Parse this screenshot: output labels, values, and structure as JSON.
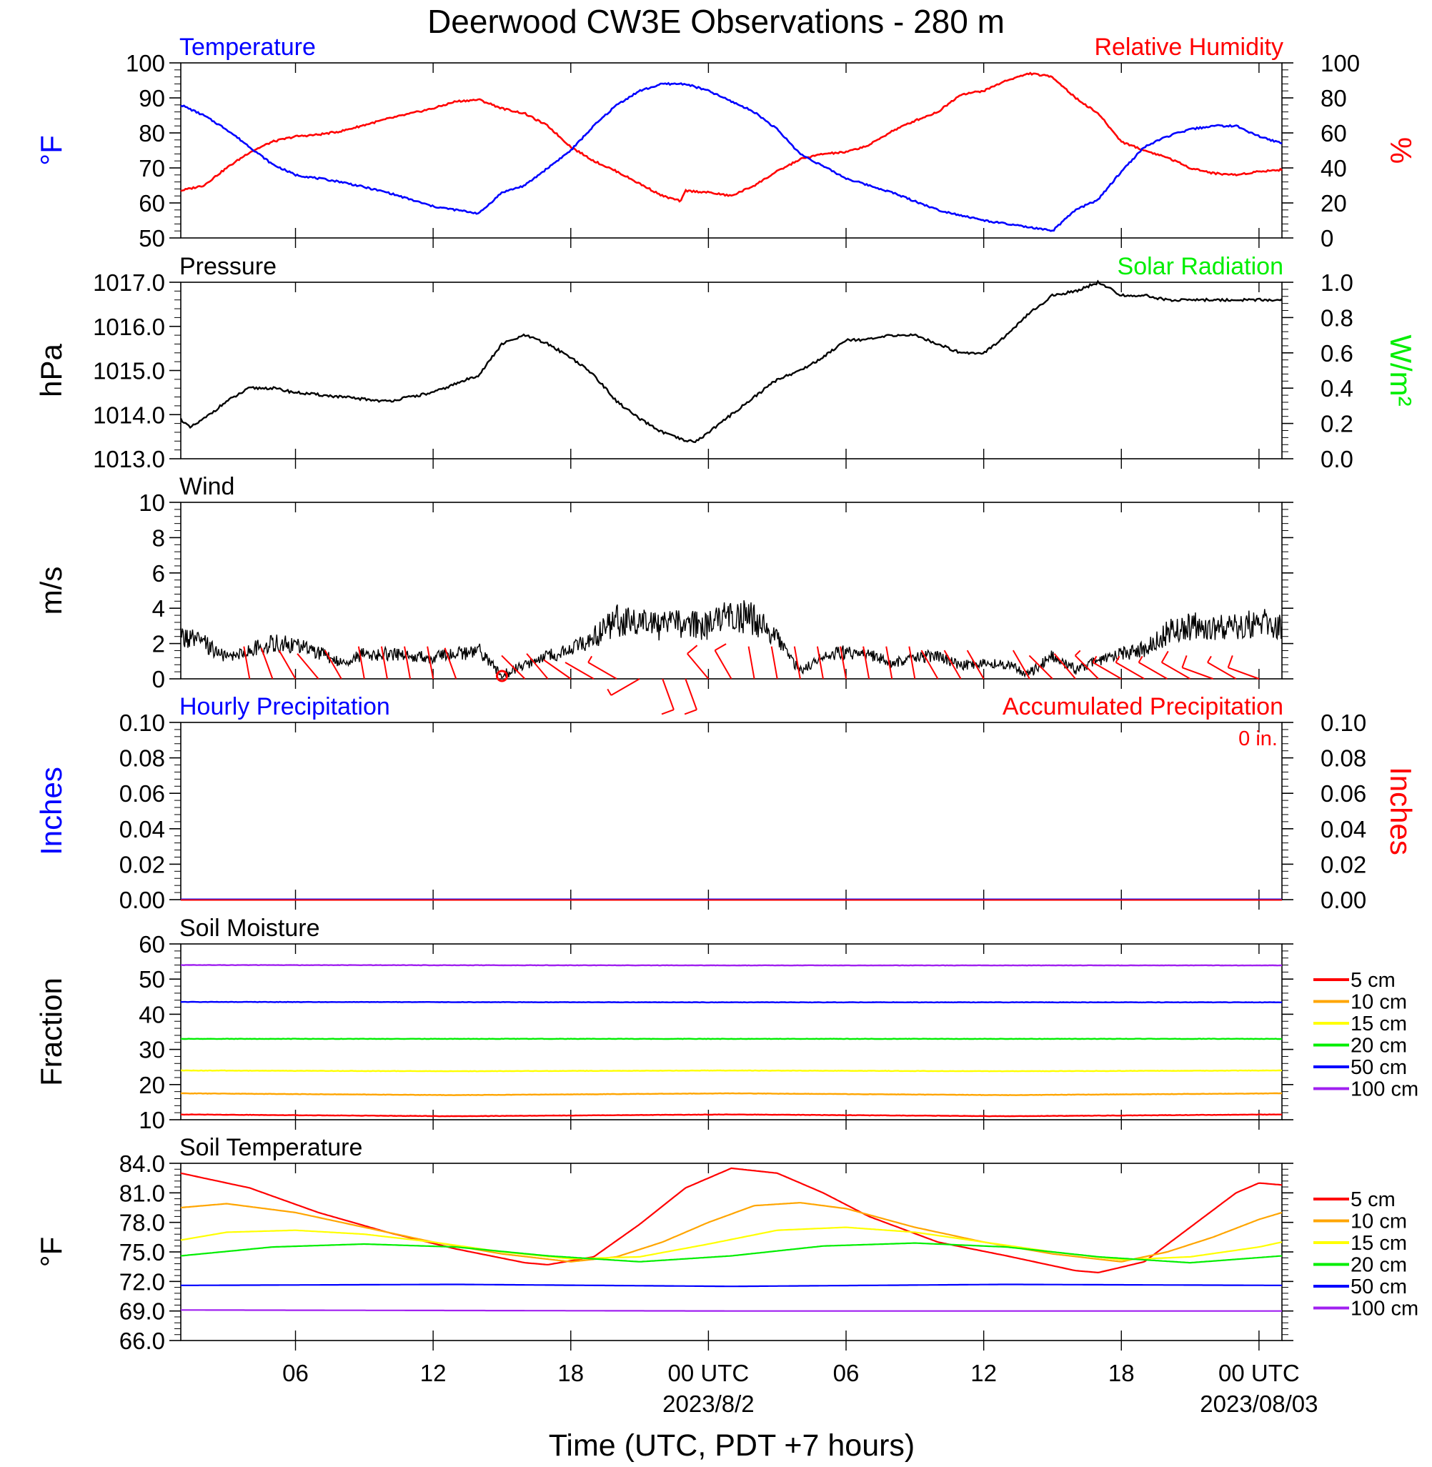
{
  "title": "Deerwood CW3E Observations - 280 m",
  "x_axis": {
    "label": "Time (UTC, PDT +7 hours)",
    "ticks": [
      {
        "hour": 6,
        "label": "06"
      },
      {
        "hour": 12,
        "label": "12"
      },
      {
        "hour": 18,
        "label": "18"
      },
      {
        "hour": 24,
        "label": "00 UTC"
      },
      {
        "hour": 30,
        "label": "06"
      },
      {
        "hour": 36,
        "label": "12"
      },
      {
        "hour": 42,
        "label": "18"
      },
      {
        "hour": 48,
        "label": "00 UTC"
      }
    ],
    "date_labels": [
      {
        "hour": 24,
        "label": "2023/8/2"
      },
      {
        "hour": 48,
        "label": "2023/08/03"
      }
    ],
    "range_hours": [
      1,
      49
    ]
  },
  "colors": {
    "temperature": "#0000ff",
    "humidity": "#ff0000",
    "pressure": "#000000",
    "solar": "#00ee00",
    "wind": "#000000",
    "barbs": "#ff0000",
    "hourly_precip": "#0000ff",
    "accum_precip": "#ff0000",
    "soil": [
      "#ff0000",
      "#ffa500",
      "#ffff00",
      "#00ee00",
      "#0000ff",
      "#a020f0"
    ]
  },
  "panels": {
    "temp_rh": {
      "left_title": "Temperature",
      "right_title": "Relative Humidity",
      "left_unit": "°F",
      "right_unit": "%",
      "left_ticks": [
        "100",
        "90",
        "80",
        "70",
        "60",
        "50"
      ],
      "right_ticks": [
        "100",
        "80",
        "60",
        "40",
        "20",
        "0"
      ]
    },
    "pressure": {
      "left_title": "Pressure",
      "right_title": "Solar Radiation",
      "left_unit": "hPa",
      "right_unit": "W/m²",
      "left_ticks": [
        "1017.0",
        "1016.0",
        "1015.0",
        "1014.0",
        "1013.0"
      ],
      "right_ticks": [
        "1.0",
        "0.8",
        "0.6",
        "0.4",
        "0.2",
        "0.0"
      ]
    },
    "wind": {
      "left_title": "Wind",
      "left_unit": "m/s",
      "left_ticks": [
        "10",
        "8",
        "6",
        "4",
        "2",
        "0"
      ]
    },
    "precip": {
      "left_title": "Hourly Precipitation",
      "right_title": "Accumulated Precipitation",
      "accum_note": "0 in.",
      "left_unit": "Inches",
      "right_unit": "Inches",
      "left_ticks": [
        "0.10",
        "0.08",
        "0.06",
        "0.04",
        "0.02",
        "0.00"
      ],
      "right_ticks": [
        "0.10",
        "0.08",
        "0.06",
        "0.04",
        "0.02",
        "0.00"
      ]
    },
    "soil_moisture": {
      "left_title": "Soil Moisture",
      "left_unit": "Fraction",
      "left_ticks": [
        "60",
        "50",
        "40",
        "30",
        "20",
        "10"
      ]
    },
    "soil_temp": {
      "left_title": "Soil Temperature",
      "left_unit": "°F",
      "left_ticks": [
        "84.0",
        "81.0",
        "78.0",
        "75.0",
        "72.0",
        "69.0",
        "66.0"
      ]
    }
  },
  "legend": {
    "items": [
      "5 cm",
      "10 cm",
      "15 cm",
      "20 cm",
      "50 cm",
      "100 cm"
    ]
  },
  "chart_data": [
    {
      "type": "line",
      "panel": "Temperature / Relative Humidity",
      "x_unit": "hours UTC from 2023-08-01 00Z",
      "series": [
        {
          "name": "Temperature",
          "axis": "left",
          "ylim": [
            50,
            100
          ],
          "x": [
            1,
            2,
            3,
            4,
            5,
            6,
            8,
            10,
            12,
            14,
            15,
            16,
            17,
            18,
            19,
            20,
            21,
            22,
            23,
            24,
            25,
            26,
            27,
            28,
            30,
            32,
            34,
            36,
            38,
            39,
            40,
            41,
            42,
            43,
            44,
            45,
            46,
            47,
            48,
            49
          ],
          "y": [
            88,
            85,
            81,
            76,
            71,
            68,
            66,
            63,
            59,
            57,
            63,
            65,
            70,
            75,
            82,
            88,
            92,
            94,
            94,
            92,
            89,
            86,
            81,
            74,
            67,
            63,
            58,
            55,
            53,
            52,
            58,
            61,
            69,
            76,
            79,
            81,
            82,
            82,
            79,
            77
          ]
        },
        {
          "name": "Relative Humidity",
          "axis": "right",
          "ylim": [
            0,
            100
          ],
          "x": [
            1,
            2,
            3,
            4,
            5,
            6,
            7,
            8,
            10,
            12,
            13,
            14,
            15,
            16,
            17,
            18,
            19,
            20,
            21,
            22,
            22.8,
            23,
            24,
            25,
            26,
            27,
            28,
            29,
            30,
            31,
            32,
            33,
            34,
            35,
            36,
            37,
            38,
            39,
            40,
            41,
            42,
            43,
            44,
            45,
            46,
            47,
            48,
            49
          ],
          "y": [
            27,
            30,
            40,
            49,
            55,
            58,
            59,
            61,
            68,
            74,
            78,
            79,
            74,
            71,
            64,
            52,
            44,
            38,
            31,
            24,
            21,
            27,
            26,
            24,
            30,
            38,
            45,
            48,
            49,
            53,
            61,
            67,
            72,
            82,
            84,
            90,
            94,
            92,
            80,
            71,
            55,
            50,
            46,
            40,
            37,
            36,
            38,
            39
          ]
        }
      ]
    },
    {
      "type": "line",
      "panel": "Pressure / Solar Radiation",
      "x_unit": "hours UTC",
      "series": [
        {
          "name": "Pressure",
          "axis": "left",
          "ylim": [
            1013.0,
            1017.0
          ],
          "x": [
            1,
            1.4,
            2,
            3,
            4,
            5,
            6,
            8,
            10,
            12,
            14,
            15,
            16,
            17,
            18,
            19,
            20,
            21,
            22,
            23,
            23.5,
            24,
            25,
            26,
            27,
            28,
            29,
            30,
            31,
            32,
            33,
            34,
            35,
            36,
            37,
            38,
            39,
            40,
            41,
            42,
            43,
            44,
            45,
            46,
            47,
            48,
            49
          ],
          "y": [
            1013.9,
            1013.7,
            1013.9,
            1014.3,
            1014.6,
            1014.6,
            1014.5,
            1014.4,
            1014.3,
            1014.5,
            1014.9,
            1015.6,
            1015.8,
            1015.6,
            1015.3,
            1014.9,
            1014.3,
            1013.9,
            1013.6,
            1013.4,
            1013.4,
            1013.6,
            1014.0,
            1014.4,
            1014.8,
            1015.0,
            1015.3,
            1015.7,
            1015.7,
            1015.8,
            1015.8,
            1015.6,
            1015.4,
            1015.4,
            1015.8,
            1016.3,
            1016.7,
            1016.8,
            1017.0,
            1016.7,
            1016.7,
            1016.6,
            1016.6,
            1016.6,
            1016.6,
            1016.6,
            1016.6
          ]
        },
        {
          "name": "Solar Radiation",
          "axis": "right",
          "ylim": [
            0.0,
            1.0
          ],
          "x": [],
          "y": []
        }
      ]
    },
    {
      "type": "line",
      "panel": "Wind",
      "x_unit": "hours UTC",
      "series": [
        {
          "name": "Wind",
          "ylim": [
            0,
            10
          ],
          "x": [
            1,
            2,
            3,
            4,
            5,
            6,
            7,
            8,
            9,
            10,
            11,
            12,
            13,
            14,
            15,
            16,
            17,
            18,
            19,
            20,
            21,
            22,
            23,
            24,
            25,
            26,
            27,
            28,
            29,
            30,
            31,
            32,
            33,
            34,
            35,
            36,
            37,
            38,
            39,
            40,
            41,
            42,
            43,
            44,
            45,
            46,
            47,
            48,
            49
          ],
          "y": [
            2.4,
            2.0,
            1.2,
            1.6,
            2.0,
            1.9,
            1.5,
            0.9,
            1.4,
            1.4,
            1.3,
            1.2,
            1.4,
            1.6,
            0.2,
            0.8,
            1.3,
            1.6,
            2.3,
            3.3,
            3.1,
            3.0,
            3.2,
            3.0,
            3.6,
            3.4,
            2.2,
            0.4,
            1.3,
            1.5,
            1.4,
            0.9,
            1.2,
            1.3,
            0.7,
            1.0,
            0.8,
            0.3,
            1.3,
            0.5,
            1.0,
            1.4,
            1.7,
            2.6,
            3.0,
            2.8,
            3.1,
            3.2,
            3.0
          ]
        },
        {
          "name": "barbs",
          "type": "wind_barb",
          "x": [
            4,
            5,
            6,
            7,
            8,
            9,
            10,
            11,
            12,
            13,
            15,
            16,
            17,
            18,
            19,
            20,
            21,
            22,
            23,
            24,
            25,
            26,
            27,
            28,
            29,
            30,
            31,
            32,
            33,
            34,
            35,
            36,
            38,
            39,
            40,
            41,
            42,
            43,
            44,
            45,
            46,
            47,
            48
          ],
          "speed": [
            1.5,
            1.5,
            1.5,
            1.5,
            1.5,
            1.5,
            1.5,
            1.5,
            1.5,
            1.5,
            0,
            1.5,
            1.5,
            1.5,
            1.5,
            2.5,
            2.5,
            5,
            5,
            5,
            5,
            1.5,
            1.5,
            1.5,
            1.5,
            1.5,
            1.5,
            1.5,
            1.5,
            1.5,
            1.5,
            1.5,
            1.5,
            1.5,
            1.5,
            2.5,
            2.5,
            2.5,
            2.5,
            5,
            5,
            2.5,
            5
          ],
          "dir": [
            350,
            340,
            330,
            320,
            330,
            350,
            350,
            350,
            350,
            340,
            0,
            315,
            320,
            305,
            300,
            300,
            240,
            160,
            160,
            320,
            330,
            350,
            350,
            350,
            350,
            350,
            350,
            350,
            350,
            330,
            330,
            330,
            330,
            315,
            320,
            315,
            300,
            300,
            300,
            300,
            290,
            300,
            290
          ]
        }
      ]
    },
    {
      "type": "line",
      "panel": "Precipitation",
      "series": [
        {
          "name": "Hourly Precipitation",
          "axis": "left",
          "ylim": [
            0,
            0.1
          ],
          "x": [
            1,
            49
          ],
          "y": [
            0,
            0
          ]
        },
        {
          "name": "Accumulated Precipitation",
          "axis": "right",
          "ylim": [
            0,
            0.1
          ],
          "x": [
            1,
            49
          ],
          "y": [
            0,
            0
          ]
        }
      ]
    },
    {
      "type": "line",
      "panel": "Soil Moisture",
      "ylim": [
        10,
        60
      ],
      "series": [
        {
          "name": "5 cm",
          "x": [
            1,
            13,
            25,
            37,
            49
          ],
          "y": [
            11.5,
            11.0,
            11.5,
            11.0,
            11.5
          ]
        },
        {
          "name": "10 cm",
          "x": [
            1,
            13,
            25,
            37,
            49
          ],
          "y": [
            17.5,
            17.0,
            17.5,
            17.0,
            17.5
          ]
        },
        {
          "name": "15 cm",
          "x": [
            1,
            13,
            25,
            37,
            49
          ],
          "y": [
            24.0,
            23.8,
            24.0,
            23.8,
            24.0
          ]
        },
        {
          "name": "20 cm",
          "x": [
            1,
            13,
            25,
            37,
            49
          ],
          "y": [
            33.0,
            33.0,
            33.0,
            33.0,
            33.0
          ]
        },
        {
          "name": "50 cm",
          "x": [
            1,
            25,
            49
          ],
          "y": [
            43.5,
            43.4,
            43.4
          ]
        },
        {
          "name": "100 cm",
          "x": [
            1,
            25,
            49
          ],
          "y": [
            54.0,
            53.9,
            53.9
          ]
        }
      ]
    },
    {
      "type": "line",
      "panel": "Soil Temperature",
      "ylim": [
        66,
        84
      ],
      "series": [
        {
          "name": "5 cm",
          "x": [
            1,
            4,
            7,
            10,
            13,
            16,
            17,
            19,
            21,
            23,
            25,
            27,
            29,
            31,
            34,
            37,
            40,
            41,
            43,
            45,
            47,
            48,
            49
          ],
          "y": [
            83.0,
            81.5,
            79.0,
            77.0,
            75.3,
            73.9,
            73.7,
            74.5,
            77.8,
            81.5,
            83.5,
            83.0,
            81.0,
            78.6,
            76.0,
            74.6,
            73.1,
            72.9,
            74.0,
            77.5,
            81.0,
            82.0,
            81.8
          ]
        },
        {
          "name": "10 cm",
          "x": [
            1,
            3,
            6,
            9,
            12,
            15,
            18,
            20,
            22,
            24,
            26,
            28,
            30,
            33,
            36,
            39,
            42,
            44,
            46,
            48,
            49
          ],
          "y": [
            79.5,
            79.9,
            79.0,
            77.5,
            76.0,
            74.8,
            74.0,
            74.5,
            76.0,
            78.0,
            79.7,
            80.0,
            79.4,
            77.5,
            76.0,
            74.8,
            74.0,
            75.0,
            76.5,
            78.3,
            79.0
          ]
        },
        {
          "name": "15 cm",
          "x": [
            1,
            3,
            6,
            9,
            12,
            15,
            18,
            21,
            24,
            27,
            30,
            33,
            36,
            39,
            42,
            45,
            48,
            49
          ],
          "y": [
            76.2,
            77.0,
            77.2,
            76.8,
            76.0,
            75.0,
            74.3,
            74.5,
            75.8,
            77.2,
            77.5,
            77.0,
            76.0,
            75.0,
            74.2,
            74.5,
            75.5,
            76.0
          ]
        },
        {
          "name": "20 cm",
          "x": [
            1,
            5,
            9,
            13,
            17,
            21,
            25,
            29,
            33,
            37,
            41,
            45,
            49
          ],
          "y": [
            74.6,
            75.5,
            75.8,
            75.5,
            74.6,
            74.0,
            74.6,
            75.6,
            75.9,
            75.5,
            74.5,
            73.9,
            74.6
          ]
        },
        {
          "name": "50 cm",
          "x": [
            1,
            13,
            25,
            37,
            49
          ],
          "y": [
            71.6,
            71.7,
            71.5,
            71.7,
            71.6
          ]
        },
        {
          "name": "100 cm",
          "x": [
            1,
            25,
            49
          ],
          "y": [
            69.1,
            69.0,
            69.0
          ]
        }
      ]
    }
  ]
}
